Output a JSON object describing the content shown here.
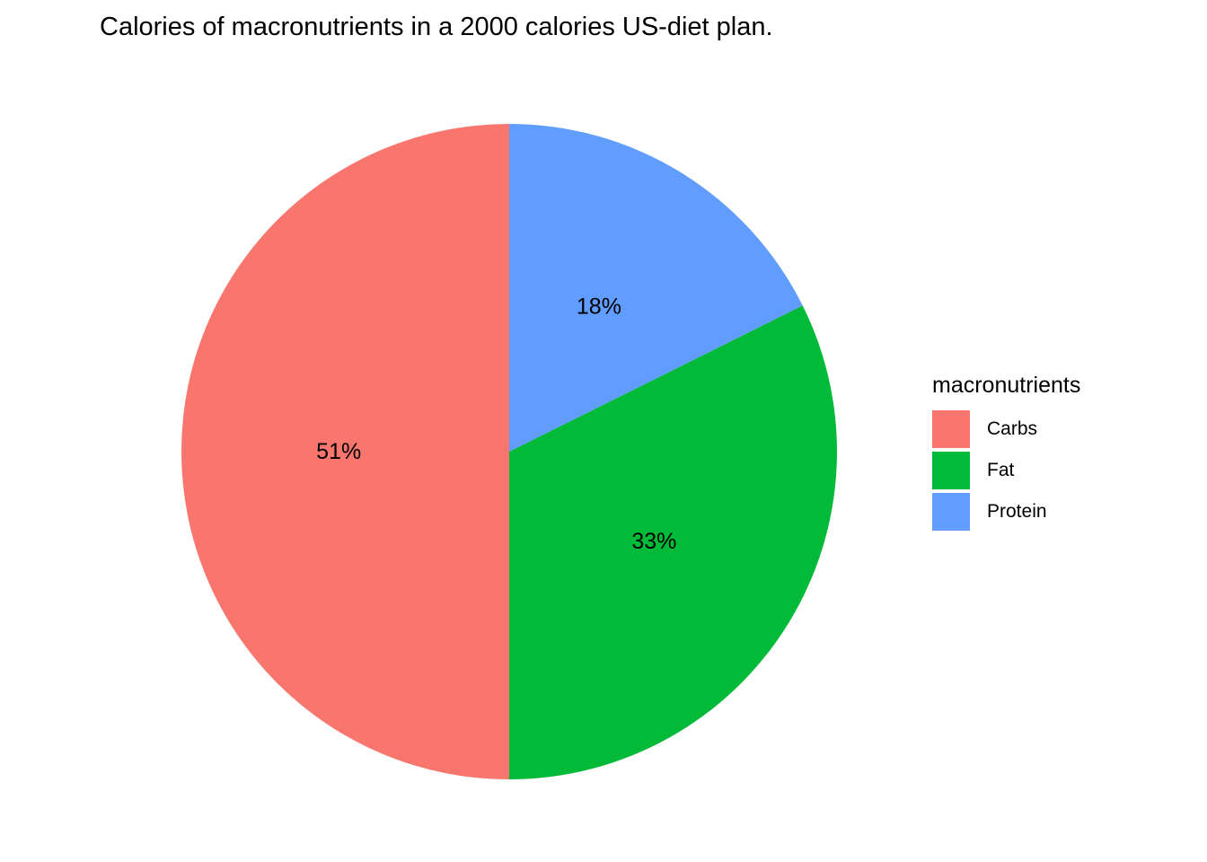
{
  "chart_data": {
    "type": "pie",
    "title": "Calories of macronutrients in a 2000 calories US-diet plan.",
    "legend_title": "macronutrients",
    "legend_position": "right",
    "categories": [
      "Carbs",
      "Fat",
      "Protein"
    ],
    "values": [
      51,
      33,
      18
    ],
    "labels": [
      "51%",
      "33%",
      "18%"
    ],
    "colors": [
      "#F8766D",
      "#00BA38",
      "#619CFF"
    ],
    "start": "12 o'clock",
    "direction": "counterclockwise"
  }
}
